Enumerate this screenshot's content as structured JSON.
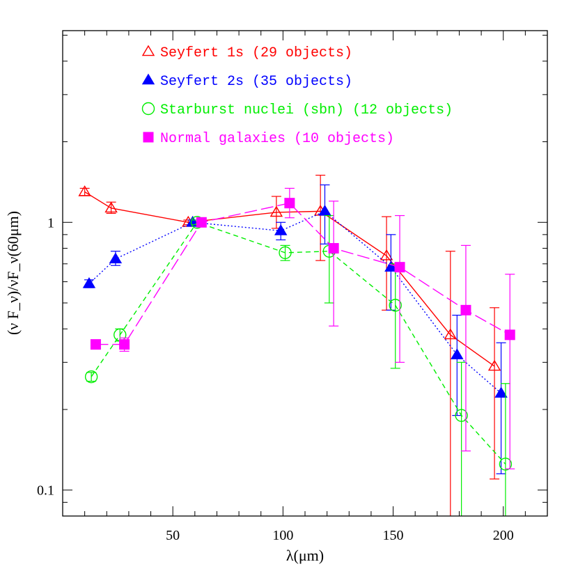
{
  "chart_data": {
    "type": "line",
    "title": "",
    "xlabel": "λ(μm)",
    "ylabel": "(ν F_ν)/νF_ν(60μm)",
    "xlim": [
      0,
      220
    ],
    "ylim": [
      0.08,
      5.2
    ],
    "yscale": "log",
    "xticks": [
      50,
      100,
      150,
      200
    ],
    "xtick_labels": [
      "50",
      "100",
      "150",
      "200"
    ],
    "yticks": [
      0.1,
      1
    ],
    "ytick_labels": [
      "0.1",
      "1"
    ],
    "legend_position": "top-center",
    "series": [
      {
        "name": "Seyfert 1s (29 objects)",
        "color": "#ff0000",
        "marker": "open-triangle",
        "linestyle": "solid",
        "points": [
          {
            "x": 10,
            "y": 1.3,
            "lo": 1.26,
            "hi": 1.34
          },
          {
            "x": 22,
            "y": 1.13,
            "lo": 1.08,
            "hi": 1.19
          },
          {
            "x": 57,
            "y": 1.0,
            "lo": 0.98,
            "hi": 1.02
          },
          {
            "x": 97,
            "y": 1.09,
            "lo": 0.95,
            "hi": 1.25
          },
          {
            "x": 117,
            "y": 1.1,
            "lo": 0.72,
            "hi": 1.5
          },
          {
            "x": 147,
            "y": 0.75,
            "lo": 0.47,
            "hi": 1.05
          },
          {
            "x": 176,
            "y": 0.38,
            "lo": 0.05,
            "hi": 0.78
          },
          {
            "x": 196,
            "y": 0.29,
            "lo": 0.11,
            "hi": 0.48
          }
        ]
      },
      {
        "name": "Seyfert 2s (35 objects)",
        "color": "#0000ff",
        "marker": "filled-triangle",
        "linestyle": "dotted",
        "points": [
          {
            "x": 12,
            "y": 0.59,
            "lo": 0.57,
            "hi": 0.61
          },
          {
            "x": 24,
            "y": 0.73,
            "lo": 0.69,
            "hi": 0.78
          },
          {
            "x": 59,
            "y": 1.0,
            "lo": 0.98,
            "hi": 1.02
          },
          {
            "x": 99,
            "y": 0.93,
            "lo": 0.86,
            "hi": 1.0
          },
          {
            "x": 119,
            "y": 1.1,
            "lo": 0.83,
            "hi": 1.38
          },
          {
            "x": 149,
            "y": 0.68,
            "lo": 0.47,
            "hi": 0.9
          },
          {
            "x": 179,
            "y": 0.32,
            "lo": 0.19,
            "hi": 0.45
          },
          {
            "x": 199,
            "y": 0.23,
            "lo": 0.115,
            "hi": 0.355
          }
        ]
      },
      {
        "name": "Starburst nuclei (sbn) (12 objects)",
        "color": "#00ee00",
        "marker": "open-circle",
        "linestyle": "dashed",
        "points": [
          {
            "x": 13,
            "y": 0.265,
            "lo": 0.255,
            "hi": 0.275
          },
          {
            "x": 26,
            "y": 0.38,
            "lo": 0.36,
            "hi": 0.4
          },
          {
            "x": 61,
            "y": 1.0,
            "lo": 0.98,
            "hi": 1.02
          },
          {
            "x": 101,
            "y": 0.77,
            "lo": 0.72,
            "hi": 0.82
          },
          {
            "x": 121,
            "y": 0.78,
            "lo": 0.5,
            "hi": 1.06
          },
          {
            "x": 151,
            "y": 0.49,
            "lo": 0.285,
            "hi": 0.7
          },
          {
            "x": 181,
            "y": 0.19,
            "lo": 0.05,
            "hi": 0.3
          },
          {
            "x": 201,
            "y": 0.125,
            "lo": 0.05,
            "hi": 0.25
          }
        ]
      },
      {
        "name": "Normal galaxies (10 objects)",
        "color": "#ff00ff",
        "marker": "filled-square",
        "linestyle": "long-dashed",
        "points": [
          {
            "x": 15,
            "y": 0.35,
            "lo": 0.34,
            "hi": 0.36
          },
          {
            "x": 28,
            "y": 0.35,
            "lo": 0.33,
            "hi": 0.37
          },
          {
            "x": 63,
            "y": 1.0,
            "lo": 0.98,
            "hi": 1.02
          },
          {
            "x": 103,
            "y": 1.18,
            "lo": 1.04,
            "hi": 1.34
          },
          {
            "x": 123,
            "y": 0.8,
            "lo": 0.41,
            "hi": 1.2
          },
          {
            "x": 153,
            "y": 0.68,
            "lo": 0.3,
            "hi": 1.06
          },
          {
            "x": 183,
            "y": 0.47,
            "lo": 0.14,
            "hi": 0.82
          },
          {
            "x": 203,
            "y": 0.38,
            "lo": 0.12,
            "hi": 0.64
          }
        ]
      }
    ]
  }
}
